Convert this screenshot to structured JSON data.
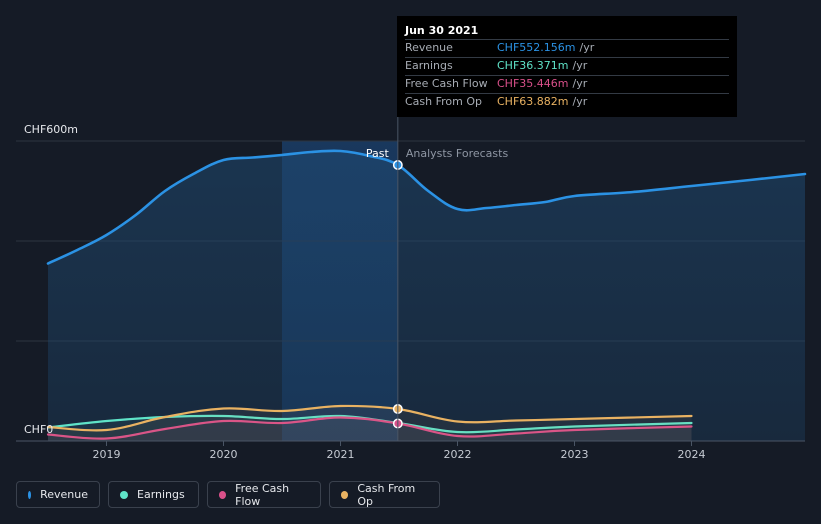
{
  "colors": {
    "background": "#151b26",
    "revenue": "#2b92e4",
    "earnings": "#5fe3c8",
    "free_cash_flow": "#d9508a",
    "cash_from_op": "#e9b262",
    "grid": "#2d3440",
    "past_band": "#1a3a66"
  },
  "tooltip": {
    "date": "Jun 30 2021",
    "rows": [
      {
        "label": "Revenue",
        "value": "CHF552.156m",
        "unit": "/yr",
        "color": "#2b92e4"
      },
      {
        "label": "Earnings",
        "value": "CHF36.371m",
        "unit": "/yr",
        "color": "#5fe3c8"
      },
      {
        "label": "Free Cash Flow",
        "value": "CHF35.446m",
        "unit": "/yr",
        "color": "#d9508a"
      },
      {
        "label": "Cash From Op",
        "value": "CHF63.882m",
        "unit": "/yr",
        "color": "#e9b262"
      }
    ]
  },
  "legend": [
    {
      "label": "Revenue",
      "color": "#2b92e4",
      "icon": "dot-icon"
    },
    {
      "label": "Earnings",
      "color": "#5fe3c8",
      "icon": "dot-icon"
    },
    {
      "label": "Free Cash Flow",
      "color": "#d9508a",
      "icon": "dot-icon"
    },
    {
      "label": "Cash From Op",
      "color": "#e9b262",
      "icon": "dot-icon"
    }
  ],
  "chart_data": {
    "type": "line",
    "ylim": [
      0,
      600
    ],
    "xlim": [
      2018.5,
      2024.97
    ],
    "y_tick_labels": [
      {
        "value": 600,
        "label": "CHF600m"
      },
      {
        "value": 0,
        "label": "CHF0"
      }
    ],
    "gridlines": [
      0,
      200,
      400,
      600
    ],
    "x_ticks": [
      2019,
      2020,
      2021,
      2022,
      2023,
      2024
    ],
    "past_label": "Past",
    "forecast_label": "Analysts Forecasts",
    "highlight_start": 2020.5,
    "divider_x": 2021.49,
    "series": [
      {
        "name": "Revenue",
        "color": "#2b92e4",
        "x": [
          2018.5,
          2018.75,
          2019.0,
          2019.25,
          2019.5,
          2019.75,
          2020.0,
          2020.25,
          2020.5,
          2020.75,
          2021.0,
          2021.25,
          2021.49,
          2021.75,
          2022.0,
          2022.25,
          2022.5,
          2022.75,
          2023.0,
          2023.5,
          2024.0,
          2024.5,
          2024.97
        ],
        "values": [
          355,
          382,
          412,
          452,
          500,
          535,
          562,
          567,
          572,
          578,
          580,
          570,
          552,
          500,
          464,
          466,
          472,
          478,
          490,
          498,
          510,
          522,
          534
        ],
        "area": true,
        "marker_x": 2021.49,
        "marker_y": 552
      },
      {
        "name": "Earnings",
        "color": "#5fe3c8",
        "x": [
          2018.5,
          2019.0,
          2019.5,
          2020.0,
          2020.5,
          2021.0,
          2021.49,
          2022.0,
          2022.5,
          2023.0,
          2024.0
        ],
        "values": [
          27,
          40,
          48,
          50,
          44,
          50,
          36,
          18,
          23,
          29,
          36
        ],
        "area": false
      },
      {
        "name": "Free Cash Flow",
        "color": "#d9508a",
        "x": [
          2018.5,
          2019.0,
          2019.5,
          2020.0,
          2020.5,
          2021.0,
          2021.49,
          2022.0,
          2022.5,
          2023.0,
          2024.0
        ],
        "values": [
          13,
          5,
          24,
          40,
          36,
          47,
          35,
          10,
          15,
          22,
          29
        ],
        "area": false,
        "marker_x": 2021.49,
        "marker_y": 35
      },
      {
        "name": "Cash From Op",
        "color": "#e9b262",
        "x": [
          2018.5,
          2019.0,
          2019.5,
          2020.0,
          2020.5,
          2021.0,
          2021.49,
          2022.0,
          2022.5,
          2023.0,
          2024.0
        ],
        "values": [
          28,
          22,
          48,
          65,
          60,
          70,
          64,
          39,
          41,
          44,
          50
        ],
        "area": false,
        "marker_x": 2021.49,
        "marker_y": 64
      }
    ]
  }
}
